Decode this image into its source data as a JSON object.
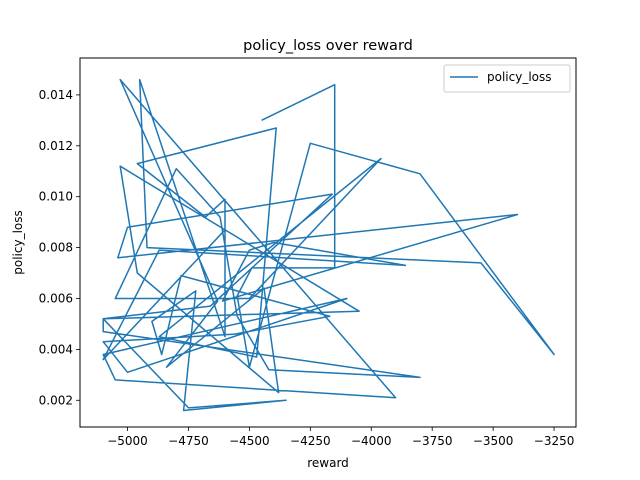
{
  "chart_data": {
    "type": "line",
    "title": "policy_loss over reward",
    "xlabel": "reward",
    "ylabel": "policy_loss",
    "xlim": [
      -5195,
      -3160
    ],
    "ylim": [
      0.00095,
      0.01545
    ],
    "xticks": [
      -5000,
      -4750,
      -4500,
      -4250,
      -4000,
      -3750,
      -3500,
      -3250
    ],
    "xtick_labels": [
      "−5000",
      "−4750",
      "−4500",
      "−4250",
      "−4000",
      "−3750",
      "−3500",
      "−3250"
    ],
    "yticks": [
      0.002,
      0.004,
      0.006,
      0.008,
      0.01,
      0.012,
      0.014
    ],
    "ytick_labels": [
      "0.002",
      "0.004",
      "0.006",
      "0.008",
      "0.010",
      "0.012",
      "0.014"
    ],
    "grid": false,
    "legend": "upper right",
    "color": "#1f77b4",
    "series": [
      {
        "name": "policy_loss",
        "x": [
          -4450,
          -4150,
          -4150,
          -4150,
          -4490,
          -4550,
          -4500,
          -4250,
          -3800,
          -3250,
          -3550,
          -4920,
          -4950,
          -4600,
          -4600,
          -4680,
          -4960,
          -4390,
          -4470,
          -4870,
          -3960,
          -4500,
          -5050,
          -4800,
          -4620,
          -4620,
          -4550,
          -4420,
          -3800,
          -5100,
          -5100,
          -4050,
          -5030,
          -4960,
          -4380,
          -4440,
          -4840,
          -4630,
          -5030,
          -3900,
          -5050,
          -5100,
          -4100,
          -5000,
          -5100,
          -4560,
          -4170,
          -4780,
          -4860,
          -4900,
          -4720,
          -4770,
          -4350,
          -4750,
          -5100,
          -4660,
          -4160,
          -5000,
          -5040,
          -3400,
          -4610,
          -4500,
          -4400,
          -3860,
          -4870,
          -5100,
          -4600
        ],
        "y": [
          0.013,
          0.0144,
          0.0115,
          0.0072,
          0.0072,
          0.0061,
          0.0033,
          0.0121,
          0.0109,
          0.0038,
          0.0074,
          0.008,
          0.0146,
          0.0045,
          0.0099,
          0.0092,
          0.0113,
          0.0127,
          0.0037,
          0.0045,
          0.0115,
          0.006,
          0.006,
          0.0111,
          0.0092,
          0.0092,
          0.0053,
          0.0032,
          0.0029,
          0.0047,
          0.0052,
          0.0055,
          0.0112,
          0.007,
          0.0023,
          0.0064,
          0.0033,
          0.0059,
          0.0146,
          0.0021,
          0.0028,
          0.0038,
          0.006,
          0.0031,
          0.0043,
          0.0046,
          0.0053,
          0.0069,
          0.0038,
          0.0051,
          0.0063,
          0.0016,
          0.002,
          0.0017,
          0.0052,
          0.0057,
          0.0101,
          0.0088,
          0.0076,
          0.0093,
          0.0059,
          0.0079,
          0.0082,
          0.0073,
          0.0079,
          0.0036,
          0.0087
        ]
      }
    ]
  }
}
